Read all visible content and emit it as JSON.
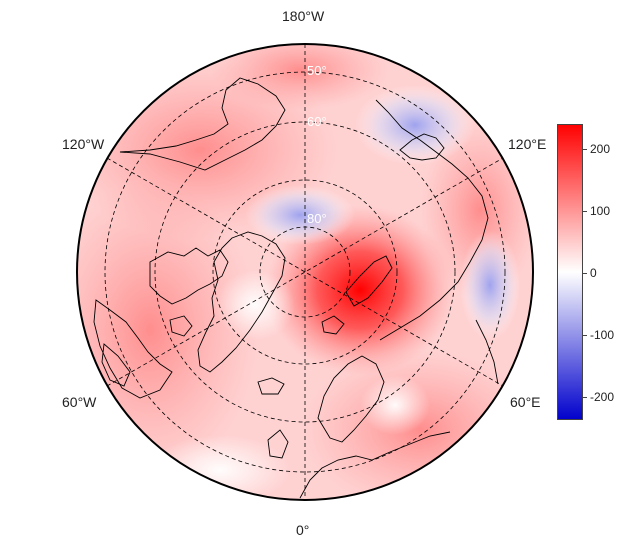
{
  "map": {
    "projection": "north-polar-stereographic",
    "longitude_labels": {
      "top": "180°W",
      "bottom": "0°",
      "upper_left": "120°W",
      "upper_right": "120°E",
      "lower_left": "60°W",
      "lower_right": "60°E"
    },
    "latitude_labels": [
      "50°",
      "60°",
      "80°"
    ],
    "field_colors": {
      "positive": "#ff0000",
      "neutral": "#ffffff",
      "negative": "#0000ff"
    },
    "coastline_color": "#000000",
    "graticule_style": "dashed"
  },
  "colorbar": {
    "ticks": [
      "200",
      "100",
      "0",
      "-100",
      "-200"
    ],
    "range": [
      -240,
      240
    ]
  }
}
